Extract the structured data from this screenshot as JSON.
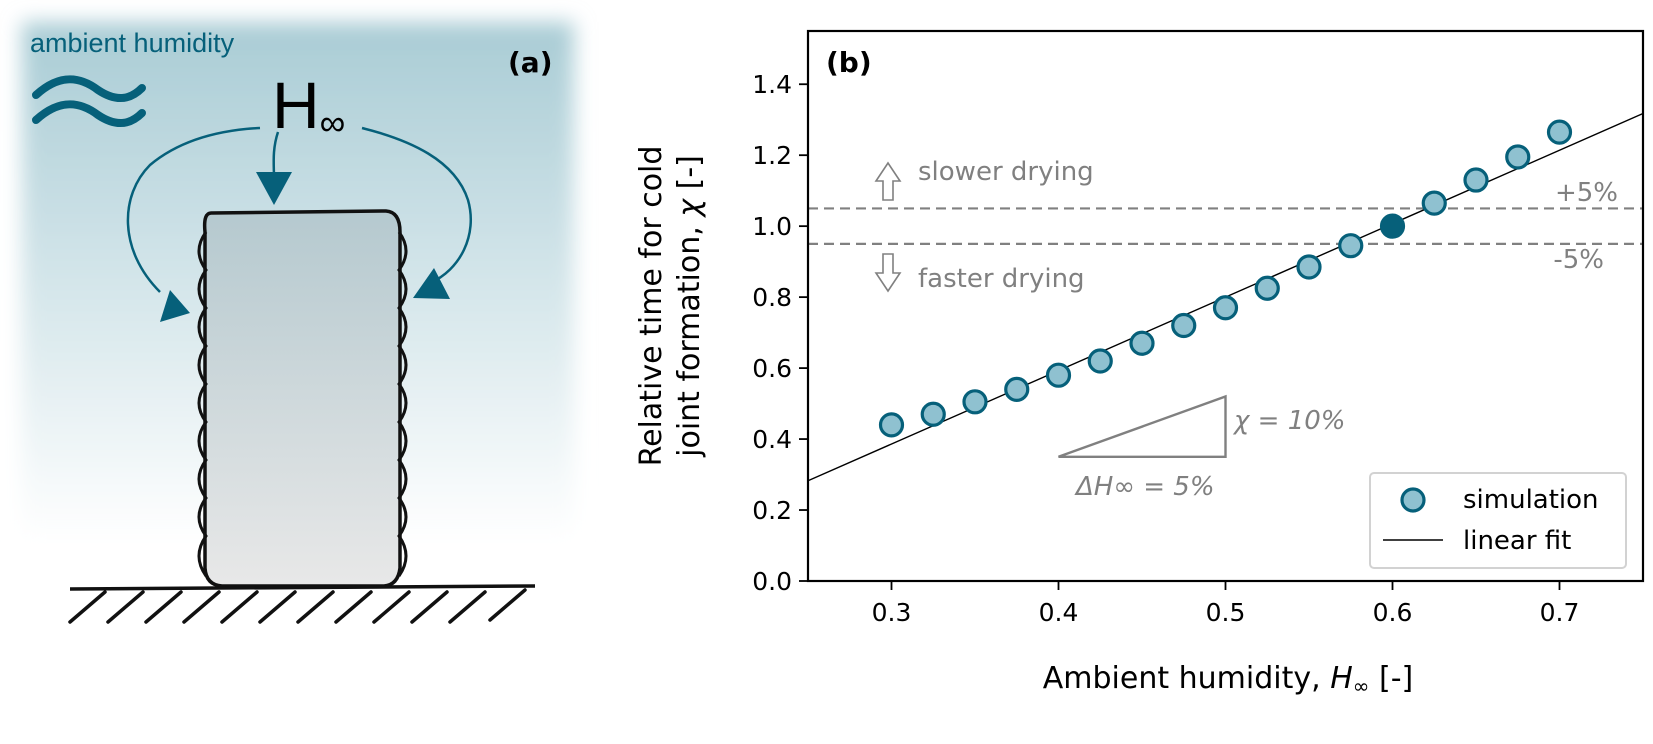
{
  "panel_a": {
    "label": "(a)",
    "ambient_label": "ambient humidity",
    "symbol_main": "H",
    "symbol_sub": "∞",
    "colors": {
      "accent": "#06607a",
      "mist": "#a9ccd5",
      "wall_top": "#b5c9cf",
      "wall_bottom": "#e8e8e8"
    }
  },
  "chart_data": {
    "type": "scatter",
    "panel_label": "(b)",
    "xlabel_main": "Ambient humidity, ",
    "xlabel_symbol": "H",
    "xlabel_sub": "∞",
    "xlabel_tail": " [-]",
    "ylabel_line1": "Relative time for cold",
    "ylabel_line2_main": "joint formation, ",
    "ylabel_line2_symbol": "χ",
    "ylabel_line2_tail": " [-]",
    "xlim": [
      0.25,
      0.75
    ],
    "ylim": [
      0.0,
      1.55
    ],
    "xticks": [
      0.3,
      0.4,
      0.5,
      0.6,
      0.7
    ],
    "xtick_labels": [
      "0.3",
      "0.4",
      "0.5",
      "0.6",
      "0.7"
    ],
    "yticks": [
      0.0,
      0.2,
      0.4,
      0.6,
      0.8,
      1.0,
      1.2,
      1.4
    ],
    "ytick_labels": [
      "0.0",
      "0.2",
      "0.4",
      "0.6",
      "0.8",
      "1.0",
      "1.2",
      "1.4"
    ],
    "series": [
      {
        "name": "simulation",
        "x": [
          0.3,
          0.325,
          0.35,
          0.375,
          0.4,
          0.425,
          0.45,
          0.475,
          0.5,
          0.525,
          0.55,
          0.575,
          0.6,
          0.625,
          0.65,
          0.675,
          0.7
        ],
        "y": [
          0.44,
          0.47,
          0.505,
          0.54,
          0.58,
          0.62,
          0.67,
          0.72,
          0.77,
          0.825,
          0.885,
          0.945,
          1.0,
          1.065,
          1.13,
          1.195,
          1.265
        ],
        "highlight_index": 12,
        "fill": "#8fc1d0",
        "edge": "#06607a",
        "highlight_fill": "#06607a"
      }
    ],
    "fit": {
      "name": "linear fit",
      "slope": 2.07,
      "intercept": -0.235,
      "color": "#000000"
    },
    "hlines": [
      {
        "y": 1.05,
        "label": "+5%"
      },
      {
        "y": 0.95,
        "label": "-5%"
      }
    ],
    "annotations": {
      "slower": "slower drying",
      "faster": "faster drying",
      "triangle": {
        "x0": 0.4,
        "x1": 0.5,
        "y0": 0.35,
        "y1": 0.52
      },
      "chi_label": "χ = 10%",
      "dh_label": "ΔH∞ = 5%"
    },
    "legend": {
      "position": "bottom-right",
      "entries": [
        "simulation",
        "linear fit"
      ]
    },
    "colors": {
      "gray": "#808080",
      "axis": "#000000"
    }
  }
}
